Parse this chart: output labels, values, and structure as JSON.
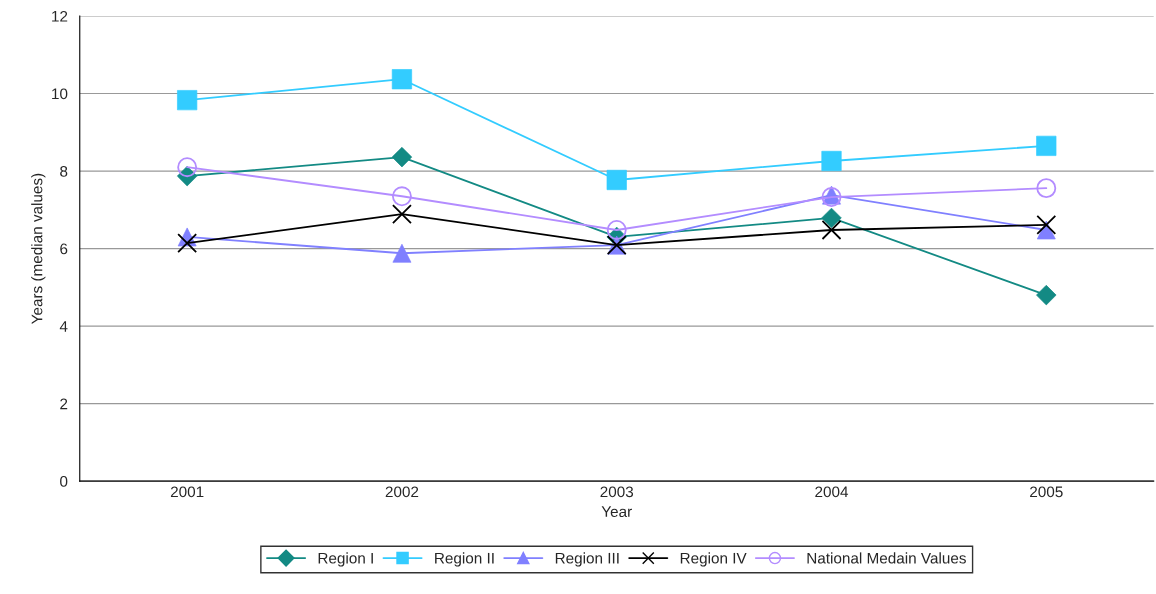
{
  "chart_data": {
    "type": "line",
    "xlabel": "Year",
    "ylabel": "Years (median values)",
    "categories": [
      "2001",
      "2002",
      "2003",
      "2004",
      "2005"
    ],
    "series": [
      {
        "name": "Region I",
        "color": "#138a84",
        "marker": "diamond",
        "values": [
          7.87,
          8.36,
          6.3,
          6.79,
          4.8
        ]
      },
      {
        "name": "Region II",
        "color": "#33ccff",
        "marker": "square",
        "values": [
          9.83,
          10.37,
          7.77,
          8.26,
          8.65
        ]
      },
      {
        "name": "Region III",
        "color": "#8080ff",
        "marker": "triangle",
        "values": [
          6.3,
          5.88,
          6.09,
          7.38,
          6.48
        ]
      },
      {
        "name": "Region IV",
        "color": "#000000",
        "marker": "cross",
        "values": [
          6.14,
          6.89,
          6.09,
          6.48,
          6.61
        ]
      },
      {
        "name": "National Medain Values",
        "color": "#b38cff",
        "marker": "circle",
        "values": [
          8.1,
          7.35,
          6.48,
          7.33,
          7.56
        ]
      }
    ],
    "ylim": [
      0,
      12
    ],
    "yticks": [
      0,
      2,
      4,
      6,
      8,
      10,
      12
    ],
    "grid": "y",
    "legend": "bottom"
  }
}
